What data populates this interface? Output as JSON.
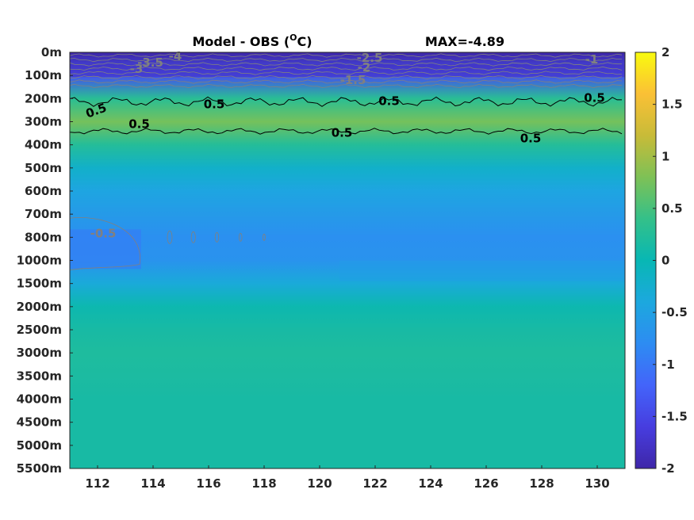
{
  "chart_data": {
    "type": "heatmap",
    "title": "Model - OBS (",
    "title_unit_sup": "O",
    "title_unit_tail": "C)",
    "max_label": "MAX=-4.89",
    "xlabel": "",
    "ylabel": "",
    "xlim": [
      111,
      131
    ],
    "x_ticks": [
      "112",
      "114",
      "116",
      "118",
      "120",
      "122",
      "124",
      "126",
      "128",
      "130"
    ],
    "x_tick_values": [
      112,
      114,
      116,
      118,
      120,
      122,
      124,
      126,
      128,
      130
    ],
    "y_ticks": [
      "0m",
      "100m",
      "200m",
      "300m",
      "400m",
      "500m",
      "600m",
      "700m",
      "800m",
      "1000m",
      "1500m",
      "2000m",
      "2500m",
      "3000m",
      "3500m",
      "4000m",
      "4500m",
      "5000m",
      "5500m"
    ],
    "clim": [
      -2,
      2
    ],
    "colorbar_ticks": [
      "2",
      "1.5",
      "1",
      "0.5",
      "0",
      "-0.5",
      "-1",
      "-1.5",
      "-2"
    ],
    "colorbar_tick_values": [
      2,
      1.5,
      1,
      0.5,
      0,
      -0.5,
      -1,
      -1.5,
      -2
    ],
    "colormap": "parula",
    "depth_profile": [
      {
        "level": "0m",
        "value": -2.0
      },
      {
        "level": "100m",
        "value": -1.4
      },
      {
        "level": "200m",
        "value": 0.3
      },
      {
        "level": "300m",
        "value": 0.75
      },
      {
        "level": "400m",
        "value": 0.25
      },
      {
        "level": "500m",
        "value": -0.2
      },
      {
        "level": "600m",
        "value": -0.45
      },
      {
        "level": "700m",
        "value": -0.6
      },
      {
        "level": "800m",
        "value": -0.75
      },
      {
        "level": "1000m",
        "value": -0.7
      },
      {
        "level": "1500m",
        "value": -0.35
      },
      {
        "level": "2000m",
        "value": 0.05
      },
      {
        "level": "2500m",
        "value": 0.15
      },
      {
        "level": "3000m",
        "value": 0.2
      },
      {
        "level": "3500m",
        "value": 0.18
      },
      {
        "level": "4000m",
        "value": 0.15
      },
      {
        "level": "4500m",
        "value": 0.15
      },
      {
        "level": "5000m",
        "value": 0.15
      },
      {
        "level": "5500m",
        "value": 0.15
      }
    ],
    "contours_black": [
      {
        "level": 0.5,
        "labels": [
          "0.5",
          "0.5",
          "0.5",
          "0.5",
          "0.5",
          "0.5",
          "0.5"
        ]
      }
    ],
    "contours_gray": [
      {
        "levels": [
          -4,
          -3.5,
          -3,
          -2.5,
          -2,
          -1.5,
          -1,
          -0.5
        ],
        "labels": [
          "-4",
          "-3.5",
          "-3",
          "-2.5",
          "-2",
          "-1.5",
          "-1",
          "-0.5"
        ]
      }
    ],
    "colors": {
      "axis": "#262626",
      "contour_black": "#000000",
      "contour_gray": "#808080"
    }
  }
}
